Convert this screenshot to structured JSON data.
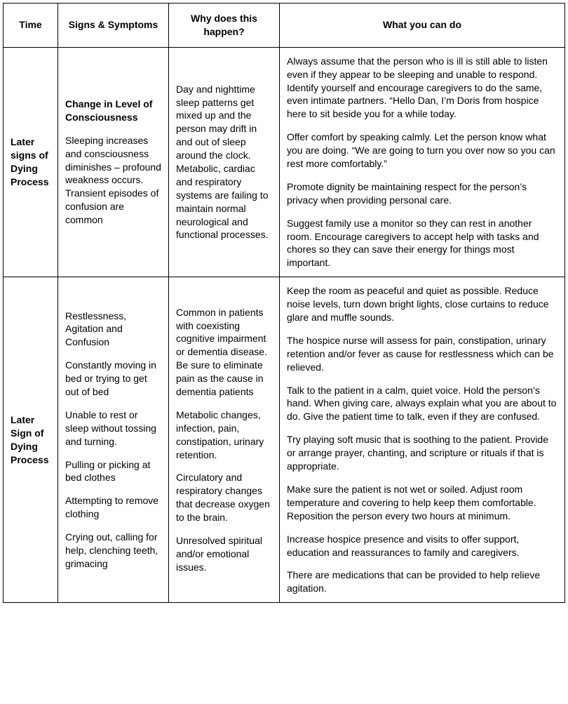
{
  "table": {
    "headers": {
      "time": "Time",
      "signs": "Signs & Symptoms",
      "why": "Why does this happen?",
      "do": "What you can do"
    },
    "rows": [
      {
        "time": "Later signs of Dying Process",
        "signs_title": "Change in Level of Consciousness",
        "signs_body": "Sleeping increases and consciousness diminishes – profound weakness occurs.  Transient episodes of confusion are common",
        "why": "Day and nighttime sleep patterns get mixed up and the person may drift in and out of sleep around the clock.  Metabolic, cardiac and respiratory systems are failing to maintain normal neurological and functional processes.",
        "do": [
          "Always assume that the person who is ill is still able to listen even if they appear to be sleeping and unable to respond.  Identify yourself and encourage caregivers to do the same, even intimate partners.  “Hello Dan, I’m Doris from hospice here to sit beside you for a while today.",
          "Offer comfort by speaking calmly.  Let the person know what you are doing. “We are going to turn you over now so you can rest more comfortably.”",
          "Promote dignity be maintaining respect for the person’s privacy when providing personal care.",
          "Suggest family use a monitor so they can rest in another room.  Encourage caregivers to accept help with tasks and chores so they can save their energy for things most important."
        ]
      },
      {
        "time": "Later Sign of Dying Process",
        "signs": [
          "Restlessness, Agitation and Confusion",
          "Constantly moving in bed or trying to get out of bed",
          "Unable to rest or sleep without tossing and turning.",
          "Pulling or picking at bed clothes",
          "Attempting to remove clothing",
          "Crying out, calling for help, clenching teeth, grimacing"
        ],
        "why": [
          "Common in patients with coexisting cognitive impairment or dementia disease.  Be sure to eliminate pain as the cause in dementia patients",
          "Metabolic changes, infection, pain, constipation, urinary retention.",
          "Circulatory and respiratory changes that decrease oxygen to the brain.",
          "Unresolved spiritual and/or emotional issues."
        ],
        "do": [
          "Keep the room as peaceful and quiet as possible.  Reduce noise levels, turn down bright lights, close curtains to reduce glare and muffle sounds.",
          "The hospice nurse will assess for pain, constipation, urinary retention and/or fever as cause for restlessness which can be relieved.",
          "Talk to the patient in a calm, quiet voice.  Hold the person’s hand.  When giving care, always explain what you are about to do. Give the patient time to talk, even if they are confused.",
          "Try playing soft music that is soothing to the patient.  Provide or arrange prayer, chanting, and scripture or rituals if that is appropriate.",
          "Make sure the patient is not wet or soiled.  Adjust room temperature and covering to help keep them comfortable.  Reposition the person every two hours at minimum.",
          "Increase hospice presence and visits to offer support, education and reassurances to family and caregivers.",
          "There are medications that can be provided to help relieve agitation."
        ]
      }
    ]
  }
}
